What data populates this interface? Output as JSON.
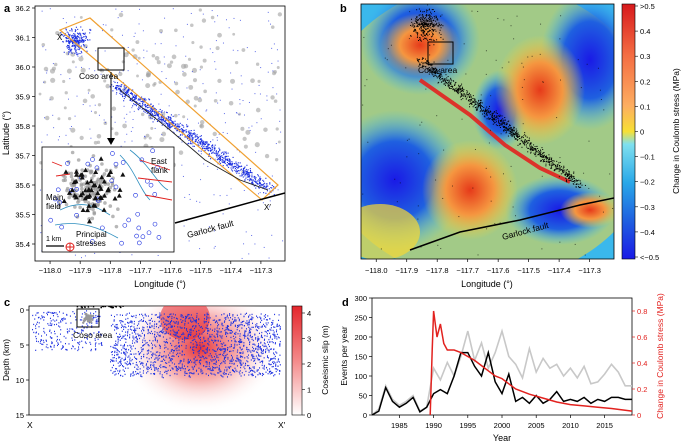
{
  "panels": {
    "a": {
      "letter": "a",
      "xlabel": "Longitude (°)",
      "ylabel": "Latitude (°)",
      "xticks": [
        "−118.0",
        "−117.9",
        "−117.8",
        "−117.7",
        "−117.6",
        "−117.5",
        "−117.4",
        "−117.3"
      ],
      "yticks": [
        "36.2",
        "36.1",
        "36.0",
        "35.9",
        "35.8",
        "35.7",
        "35.6",
        "35.5",
        "35.4"
      ],
      "box_label": "Coso area",
      "fault_label": "Garlock fault",
      "x_marker": "X",
      "x_prime_marker": "X′",
      "inset": {
        "east_flank": "East\nflank",
        "main_field": "Main\nfield",
        "scale": "1 km",
        "principal_stresses": "Principal\nstresses"
      }
    },
    "b": {
      "letter": "b",
      "xlabel": "Longitude (°)",
      "xticks": [
        "−118.0",
        "−117.9",
        "−117.8",
        "−117.7",
        "−117.6",
        "−117.5",
        "−117.4",
        "−117.3"
      ],
      "box_label": "Coso area",
      "fault_label": "Garlock fault",
      "colorbar_label": "Change in Coulomb stress (MPa)",
      "colorbar_ticks": [
        ">0.5",
        "0.4",
        "0.3",
        "0.2",
        "0.1",
        "0",
        "−0.1",
        "−0.2",
        "−0.3",
        "−0.4",
        "<−0.5"
      ]
    },
    "c": {
      "letter": "c",
      "ylabel": "Depth (km)",
      "yticks": [
        "0",
        "5",
        "10",
        "15"
      ],
      "x_left": "X",
      "x_right": "X′",
      "box_label": "Coso area",
      "colorbar_label": "Coseismic slip (m)",
      "colorbar_ticks": [
        "4",
        "3",
        "2",
        "1",
        "0"
      ]
    },
    "d": {
      "letter": "d",
      "chart_data": {
        "type": "line",
        "title": "",
        "xlabel": "Year",
        "ylabel": "Events per year",
        "ylabel_right": "Change in Coulomb stress (MPa)",
        "xlim": [
          1981,
          2019
        ],
        "ylim": [
          0,
          300
        ],
        "ylim_right": [
          0,
          0.9
        ],
        "xticks": [
          "1985",
          "1990",
          "1995",
          "2000",
          "2005",
          "2010",
          "2015"
        ],
        "yticks": [
          "0",
          "50",
          "100",
          "150",
          "200",
          "250",
          "300"
        ],
        "yticks_right": [
          "0",
          "0.2",
          "0.4",
          "0.6",
          "0.8"
        ],
        "series": [
          {
            "name": "Events per year (light)",
            "color": "#c8c8c8",
            "x": [
              1981,
              1982,
              1983,
              1984,
              1985,
              1986,
              1987,
              1988,
              1989,
              1990,
              1991,
              1992,
              1993,
              1994,
              1995,
              1996,
              1997,
              1998,
              1999,
              2000,
              2001,
              2002,
              2003,
              2004,
              2005,
              2006,
              2007,
              2008,
              2009,
              2010,
              2011,
              2012,
              2013,
              2014,
              2015,
              2016,
              2017,
              2018,
              2019
            ],
            "values": [
              0,
              15,
              75,
              40,
              25,
              35,
              50,
              10,
              20,
              120,
              90,
              135,
              100,
              150,
              215,
              140,
              185,
              120,
              160,
              215,
              150,
              130,
              95,
              170,
              110,
              145,
              120,
              130,
              100,
              120,
              95,
              125,
              80,
              85,
              105,
              130,
              110,
              75,
              75
            ]
          },
          {
            "name": "Events per year (dark)",
            "color": "#000000",
            "x": [
              1981,
              1982,
              1983,
              1984,
              1985,
              1986,
              1987,
              1988,
              1989,
              1990,
              1991,
              1992,
              1993,
              1994,
              1995,
              1996,
              1997,
              1998,
              1999,
              2000,
              2001,
              2002,
              2003,
              2004,
              2005,
              2006,
              2007,
              2008,
              2009,
              2010,
              2011,
              2012,
              2013,
              2014,
              2015,
              2016,
              2017,
              2018,
              2019
            ],
            "values": [
              0,
              10,
              70,
              35,
              20,
              30,
              45,
              8,
              20,
              55,
              65,
              55,
              100,
              160,
              160,
              125,
              100,
              160,
              85,
              55,
              105,
              35,
              45,
              30,
              50,
              30,
              40,
              60,
              35,
              40,
              35,
              45,
              30,
              40,
              35,
              45,
              45,
              40,
              40
            ]
          },
          {
            "name": "Change in Coulomb stress",
            "axis": "right",
            "color": "#e2221f",
            "x": [
              1989.5,
              1989.8,
              1990,
              1990.5,
              1991,
              1991.5,
              1992,
              1993,
              1994,
              1995,
              1996,
              1997,
              1998,
              1999,
              2000,
              2001,
              2002,
              2004,
              2006,
              2008,
              2010,
              2012,
              2014,
              2016,
              2019
            ],
            "values": [
              0,
              0.5,
              0.8,
              0.6,
              0.7,
              0.55,
              0.5,
              0.5,
              0.48,
              0.45,
              0.42,
              0.38,
              0.34,
              0.3,
              0.28,
              0.24,
              0.2,
              0.16,
              0.13,
              0.1,
              0.08,
              0.07,
              0.06,
              0.05,
              0.03
            ]
          }
        ]
      }
    }
  },
  "colors": {
    "seismicity": "#1b2fe0",
    "old_seismicity": "#a0a0a0",
    "stress_line": "#e2221f",
    "trace_box": "#f0a030"
  }
}
